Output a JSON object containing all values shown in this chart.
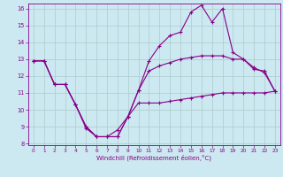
{
  "xlabel": "Windchill (Refroidissement éolien,°C)",
  "bg_color": "#cce8f0",
  "line_color": "#880088",
  "grid_color": "#aacccc",
  "xlim": [
    -0.5,
    23.5
  ],
  "ylim": [
    7.9,
    16.3
  ],
  "yticks": [
    8,
    9,
    10,
    11,
    12,
    13,
    14,
    15,
    16
  ],
  "xticks": [
    0,
    1,
    2,
    3,
    4,
    5,
    6,
    7,
    8,
    9,
    10,
    11,
    12,
    13,
    14,
    15,
    16,
    17,
    18,
    19,
    20,
    21,
    22,
    23
  ],
  "series": [
    [
      12.9,
      12.9,
      11.5,
      11.5,
      10.3,
      8.9,
      8.4,
      8.4,
      8.4,
      9.6,
      10.4,
      10.4,
      10.4,
      10.5,
      10.6,
      10.7,
      10.8,
      10.9,
      11.0,
      11.0,
      11.0,
      11.0,
      11.0,
      11.1
    ],
    [
      12.9,
      12.9,
      11.5,
      11.5,
      10.3,
      9.0,
      8.4,
      8.4,
      8.4,
      9.6,
      11.15,
      12.3,
      12.6,
      12.8,
      13.0,
      13.1,
      13.2,
      13.2,
      13.2,
      13.0,
      13.0,
      12.4,
      12.3,
      11.1
    ],
    [
      12.9,
      12.9,
      11.5,
      11.5,
      10.3,
      9.0,
      8.4,
      8.4,
      8.8,
      9.6,
      11.15,
      12.9,
      13.8,
      14.4,
      14.6,
      15.8,
      16.2,
      15.2,
      16.0,
      13.4,
      13.0,
      12.5,
      12.2,
      11.1
    ]
  ]
}
